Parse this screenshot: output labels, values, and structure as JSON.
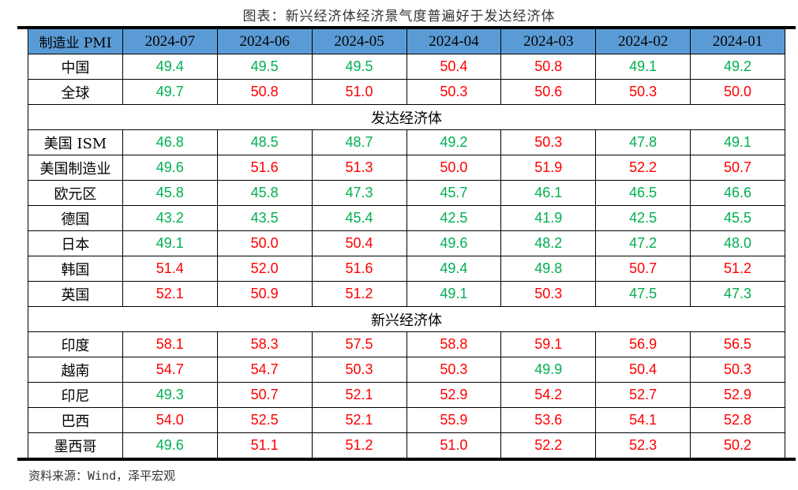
{
  "title": "图表：新兴经济体经济景气度普遍好于发达经济体",
  "colors": {
    "header_bg": "#5b9bd5",
    "above_50": "#ff0000",
    "below_50": "#00b050"
  },
  "table": {
    "headers": [
      "制造业 PMI",
      "2024-07",
      "2024-06",
      "2024-05",
      "2024-04",
      "2024-03",
      "2024-02",
      "2024-01"
    ],
    "rows": [
      {
        "label": "中国",
        "values": [
          "49.4",
          "49.5",
          "49.5",
          "50.4",
          "50.8",
          "49.1",
          "49.2"
        ]
      },
      {
        "label": "全球",
        "values": [
          "49.7",
          "50.8",
          "51.0",
          "50.3",
          "50.6",
          "50.3",
          "50.0"
        ]
      },
      {
        "section": "发达经济体"
      },
      {
        "label": "美国 ISM",
        "values": [
          "46.8",
          "48.5",
          "48.7",
          "49.2",
          "50.3",
          "47.8",
          "49.1"
        ]
      },
      {
        "label": "美国制造业",
        "values": [
          "49.6",
          "51.6",
          "51.3",
          "50.0",
          "51.9",
          "52.2",
          "50.7"
        ]
      },
      {
        "label": "欧元区",
        "values": [
          "45.8",
          "45.8",
          "47.3",
          "45.7",
          "46.1",
          "46.5",
          "46.6"
        ]
      },
      {
        "label": "德国",
        "values": [
          "43.2",
          "43.5",
          "45.4",
          "42.5",
          "41.9",
          "42.5",
          "45.5"
        ]
      },
      {
        "label": "日本",
        "values": [
          "49.1",
          "50.0",
          "50.4",
          "49.6",
          "48.2",
          "47.2",
          "48.0"
        ]
      },
      {
        "label": "韩国",
        "values": [
          "51.4",
          "52.0",
          "51.6",
          "49.4",
          "49.8",
          "50.7",
          "51.2"
        ]
      },
      {
        "label": "英国",
        "values": [
          "52.1",
          "50.9",
          "51.2",
          "49.1",
          "50.3",
          "47.5",
          "47.3"
        ]
      },
      {
        "section": "新兴经济体"
      },
      {
        "label": "印度",
        "values": [
          "58.1",
          "58.3",
          "57.5",
          "58.8",
          "59.1",
          "56.9",
          "56.5"
        ]
      },
      {
        "label": "越南",
        "values": [
          "54.7",
          "54.7",
          "50.3",
          "50.3",
          "49.9",
          "50.4",
          "50.3"
        ]
      },
      {
        "label": "印尼",
        "values": [
          "49.3",
          "50.7",
          "52.1",
          "52.9",
          "54.2",
          "52.7",
          "52.9"
        ]
      },
      {
        "label": "巴西",
        "values": [
          "54.0",
          "52.5",
          "52.1",
          "55.9",
          "53.6",
          "54.1",
          "52.8"
        ]
      },
      {
        "label": "墨西哥",
        "values": [
          "49.6",
          "51.1",
          "51.2",
          "51.0",
          "52.2",
          "52.3",
          "50.2"
        ]
      }
    ]
  },
  "source": "资料来源：Wind，泽平宏观"
}
